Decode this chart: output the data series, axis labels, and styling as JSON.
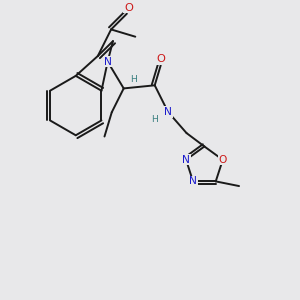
{
  "bg_color": "#e8e8ea",
  "bond_color": "#1a1a1a",
  "atom_colors": {
    "N": "#1a1acc",
    "O": "#cc1a1a",
    "H": "#3a8080"
  },
  "lw": 1.4,
  "fs": 7.2
}
